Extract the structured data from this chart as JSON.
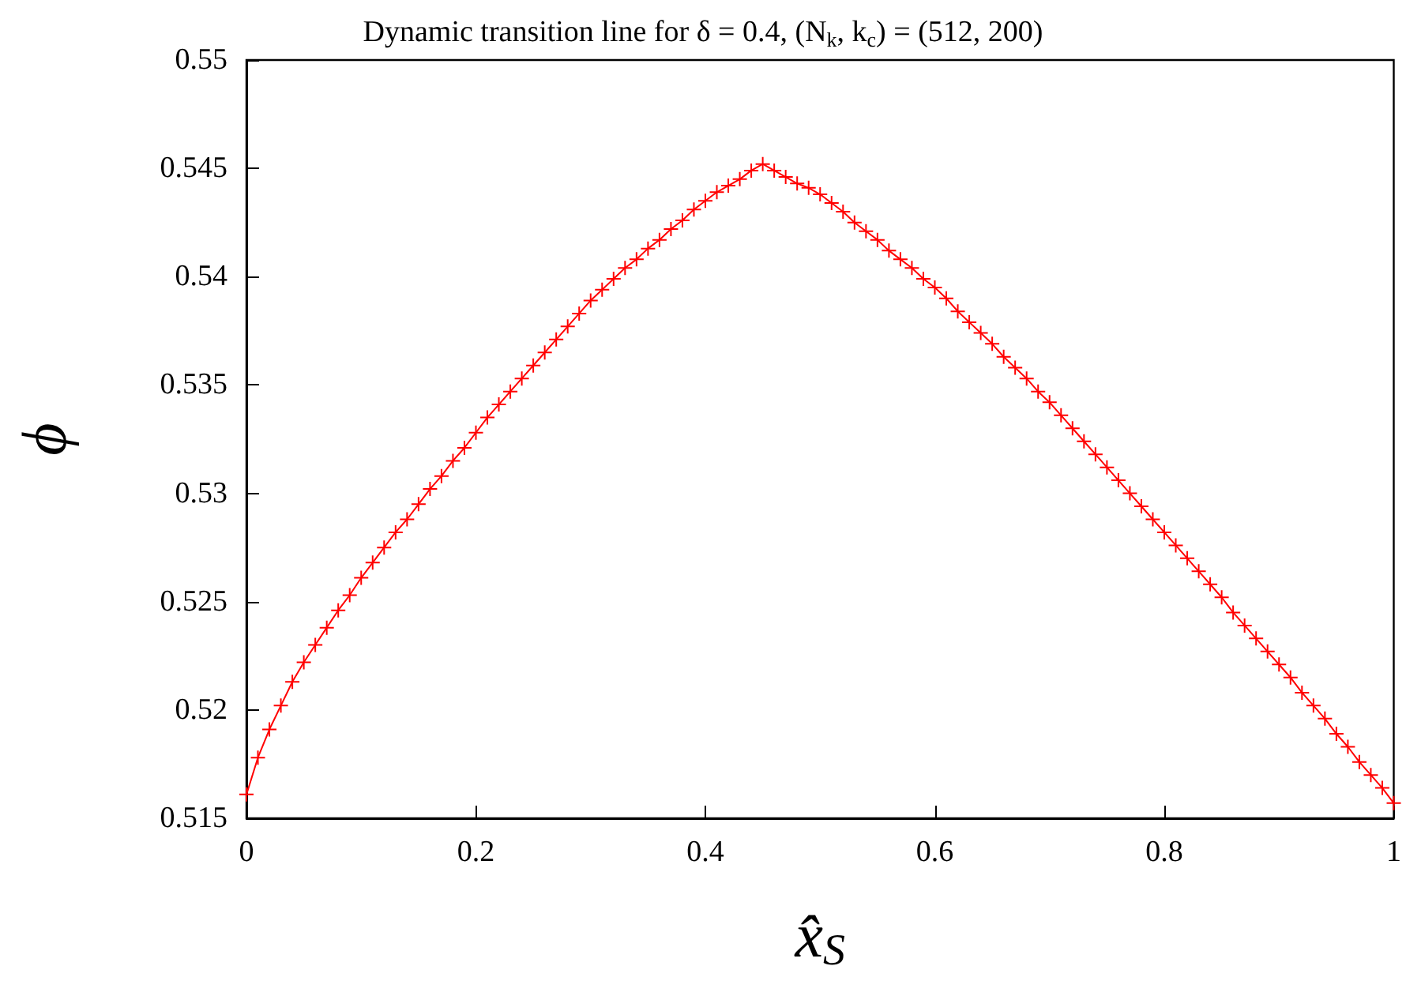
{
  "chart_data": {
    "type": "line",
    "title": "Dynamic transition line for δ = 0.4, (N$_{k}$, k$_{c}$) = (512, 200)",
    "xlabel": "x̂$_{S}$",
    "ylabel": "ϕ",
    "x": [
      0,
      0.01,
      0.02,
      0.03,
      0.04,
      0.05,
      0.06,
      0.07,
      0.08,
      0.09,
      0.1,
      0.11,
      0.12,
      0.13,
      0.14,
      0.15,
      0.16,
      0.17,
      0.18,
      0.19,
      0.2,
      0.21,
      0.22,
      0.23,
      0.24,
      0.25,
      0.26,
      0.27,
      0.28,
      0.29,
      0.3,
      0.31,
      0.32,
      0.33,
      0.34,
      0.35,
      0.36,
      0.37,
      0.38,
      0.39,
      0.4,
      0.41,
      0.42,
      0.43,
      0.44,
      0.45,
      0.46,
      0.47,
      0.48,
      0.49,
      0.5,
      0.51,
      0.52,
      0.53,
      0.54,
      0.55,
      0.56,
      0.57,
      0.58,
      0.59,
      0.6,
      0.61,
      0.62,
      0.63,
      0.64,
      0.65,
      0.66,
      0.67,
      0.68,
      0.69,
      0.7,
      0.71,
      0.72,
      0.73,
      0.74,
      0.75,
      0.76,
      0.77,
      0.78,
      0.79,
      0.8,
      0.81,
      0.82,
      0.83,
      0.84,
      0.85,
      0.86,
      0.87,
      0.88,
      0.89,
      0.9,
      0.91,
      0.92,
      0.93,
      0.94,
      0.95,
      0.96,
      0.97,
      0.98,
      0.99,
      1
    ],
    "series": [
      {
        "color": "#ff0000",
        "values": [
          0.5161,
          0.5178,
          0.5191,
          0.5202,
          0.5213,
          0.5222,
          0.523,
          0.5238,
          0.5246,
          0.5253,
          0.5261,
          0.5268,
          0.5275,
          0.5282,
          0.5288,
          0.5295,
          0.5302,
          0.5308,
          0.5315,
          0.5321,
          0.5328,
          0.5335,
          0.5341,
          0.5347,
          0.5353,
          0.5359,
          0.5365,
          0.5371,
          0.5377,
          0.5383,
          0.5389,
          0.5394,
          0.5399,
          0.5404,
          0.5408,
          0.5413,
          0.5417,
          0.5422,
          0.5426,
          0.5431,
          0.5435,
          0.5439,
          0.5442,
          0.5445,
          0.5449,
          0.5452,
          0.5449,
          0.5446,
          0.5443,
          0.5441,
          0.5438,
          0.5434,
          0.543,
          0.5425,
          0.5421,
          0.5417,
          0.5412,
          0.5408,
          0.5404,
          0.5399,
          0.5395,
          0.539,
          0.5384,
          0.5379,
          0.5374,
          0.5369,
          0.5363,
          0.5358,
          0.5353,
          0.5347,
          0.5342,
          0.5336,
          0.533,
          0.5324,
          0.5318,
          0.5312,
          0.5306,
          0.53,
          0.5294,
          0.5288,
          0.5282,
          0.5276,
          0.527,
          0.5264,
          0.5258,
          0.5252,
          0.5245,
          0.5239,
          0.5233,
          0.5227,
          0.5221,
          0.5215,
          0.5208,
          0.5202,
          0.5196,
          0.5189,
          0.5183,
          0.5176,
          0.517,
          0.5164,
          0.5157
        ]
      }
    ],
    "xlim": [
      0,
      1
    ],
    "xticks": [
      0,
      0.2,
      0.4,
      0.6,
      0.8,
      1
    ],
    "ylim": [
      0.515,
      0.55
    ],
    "yticks": [
      0.515,
      0.52,
      0.525,
      0.53,
      0.535,
      0.54,
      0.545,
      0.55
    ],
    "marker": "cross",
    "line_style": "solid"
  }
}
